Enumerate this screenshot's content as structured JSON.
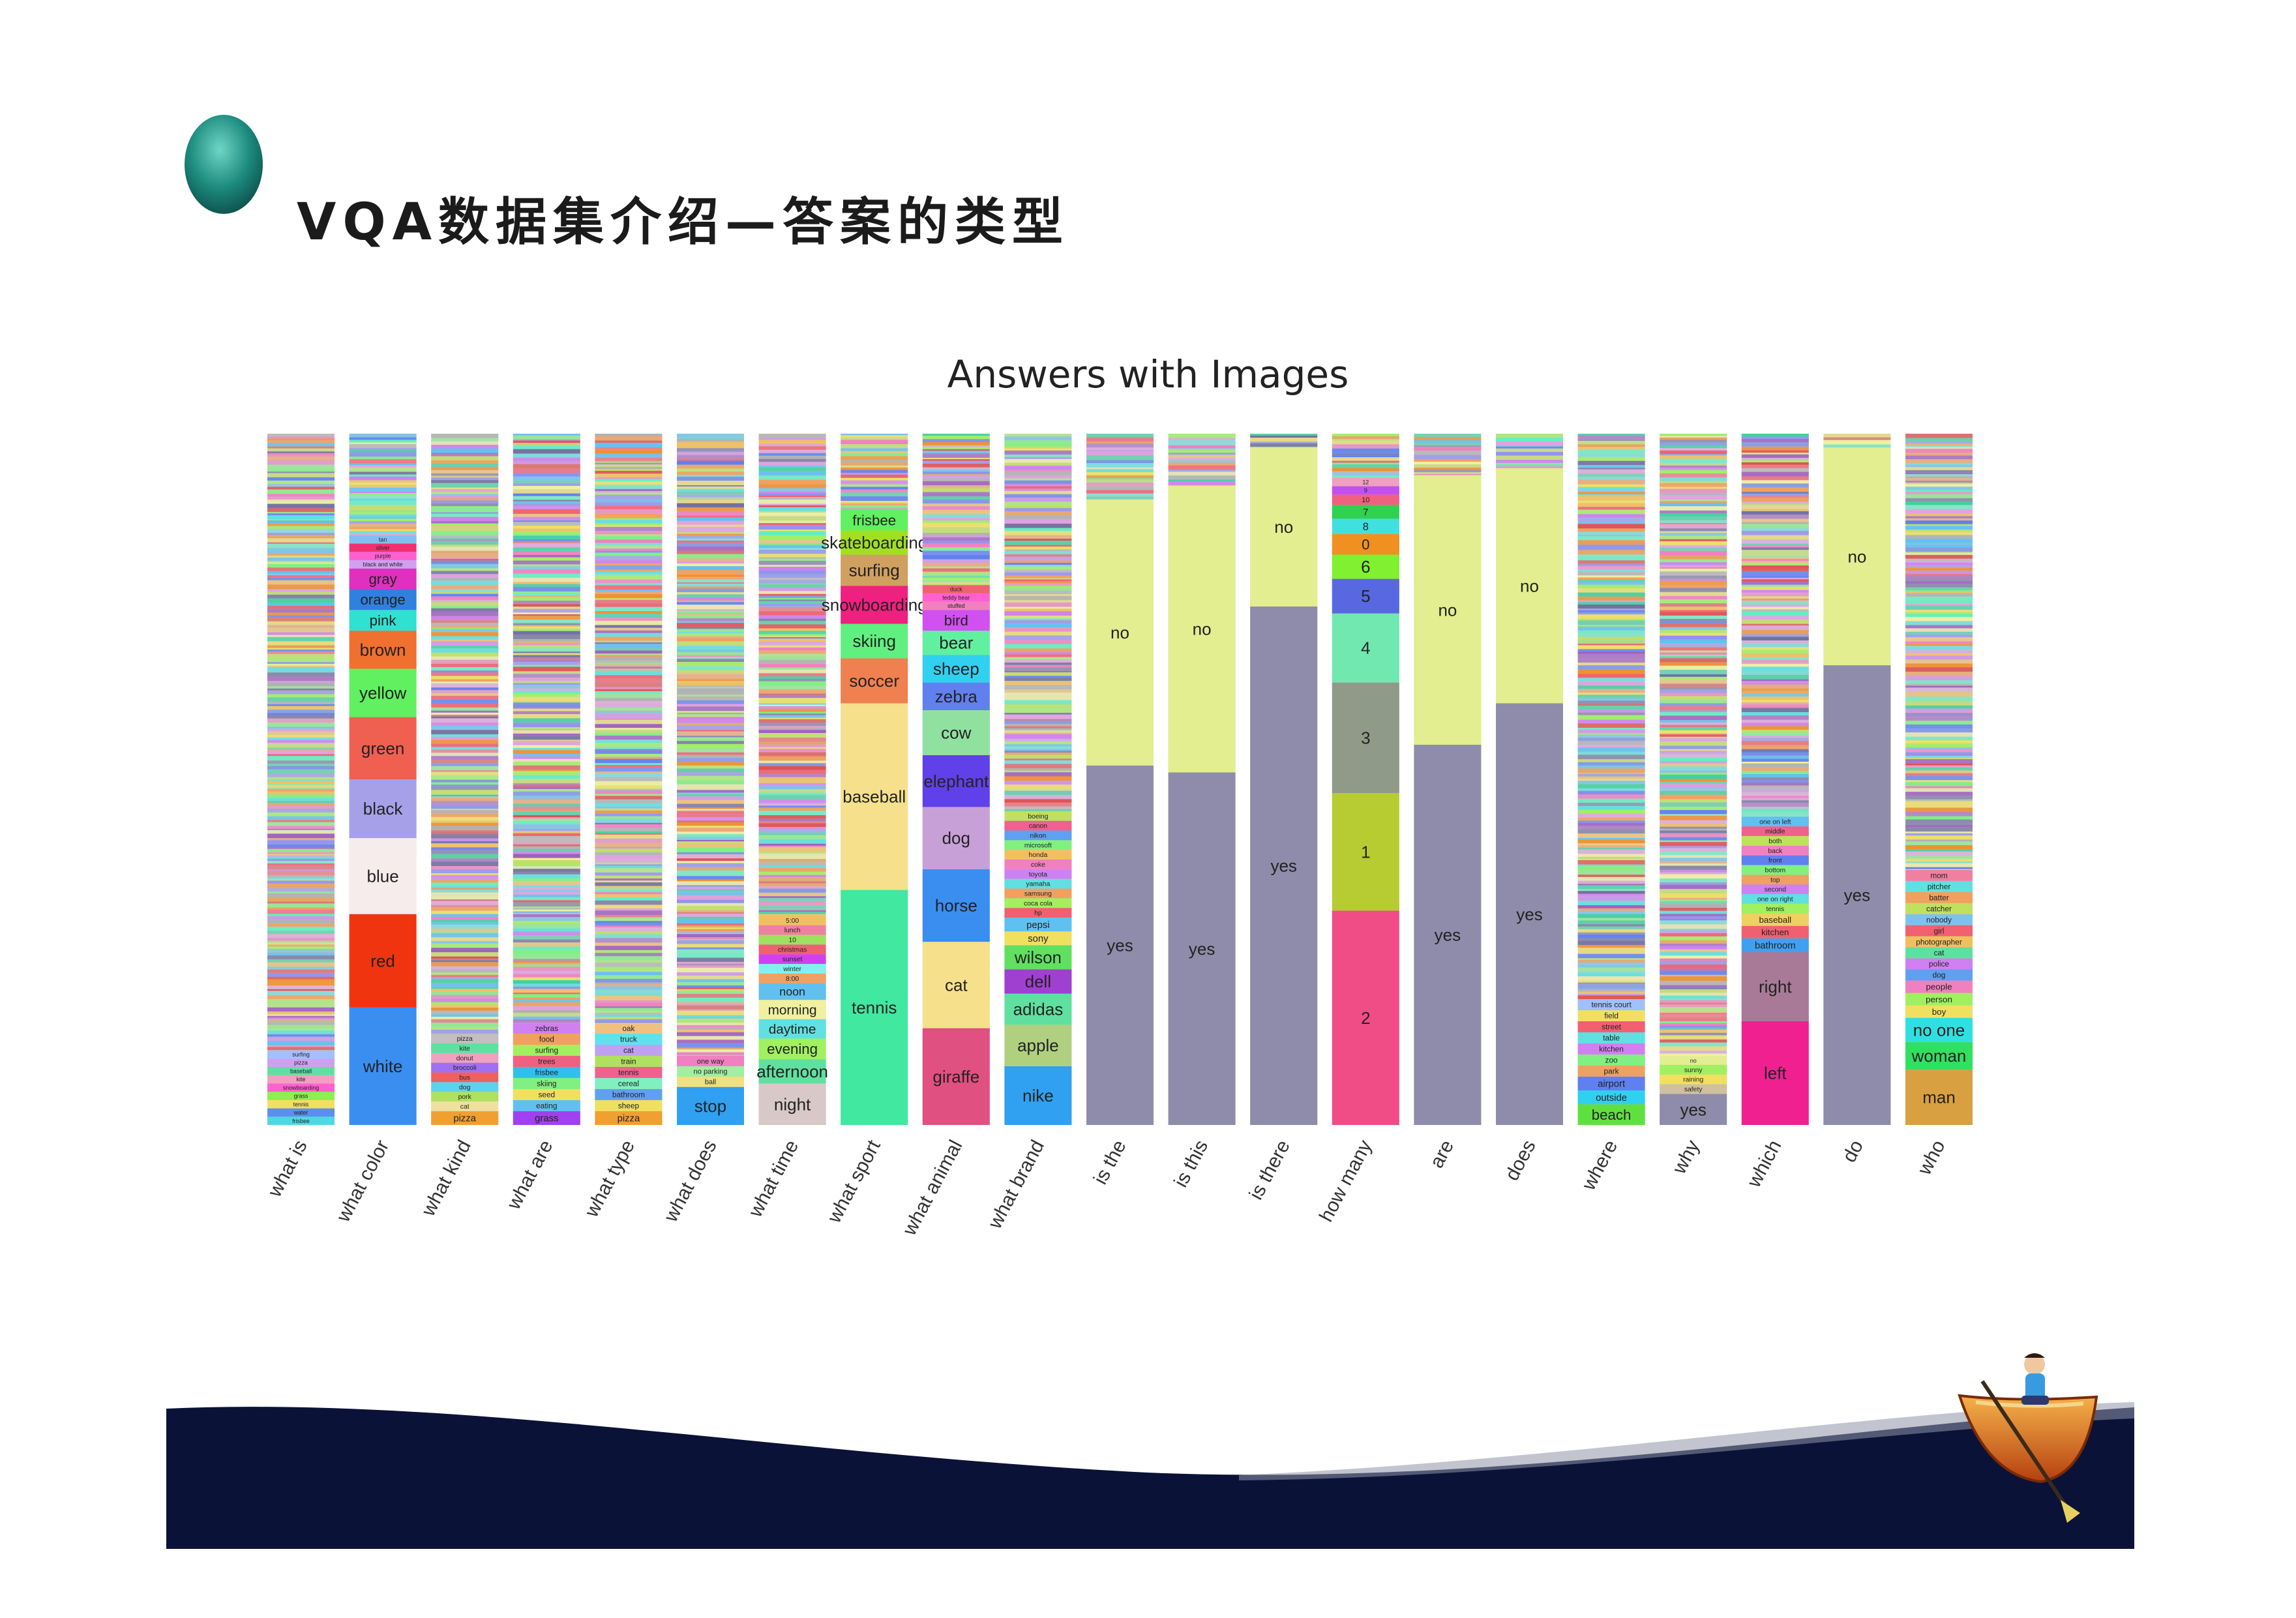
{
  "slide": {
    "title": "VQA数据集介绍—答案的类型"
  },
  "chart_data": {
    "type": "bar",
    "stacked": true,
    "title": "Answers with Images",
    "note": "Each column is a question type; stacked segments show the share of each answer (proportions estimated from the figure, fraction of column height). Unlabeled many-color noise on top represents the long tail of rare answers.",
    "categories": [
      "what is",
      "what color",
      "what kind",
      "what are",
      "what type",
      "what does",
      "what time",
      "what sport",
      "what animal",
      "what brand",
      "is the",
      "is this",
      "is there",
      "how many",
      "are",
      "does",
      "where",
      "why",
      "which",
      "do",
      "who"
    ],
    "columns": [
      {
        "label": "what is",
        "tail": 0.89,
        "segments": [
          [
            "frisbee",
            0.012,
            "#4fd8e0"
          ],
          [
            "water",
            0.012,
            "#5b8ef0"
          ],
          [
            "tennis",
            0.012,
            "#f0e060"
          ],
          [
            "grass",
            0.012,
            "#8cf050"
          ],
          [
            "snowboarding",
            0.012,
            "#ff60d0"
          ],
          [
            "kite",
            0.012,
            "#f0a0c0"
          ],
          [
            "baseball",
            0.012,
            "#60e0a0"
          ],
          [
            "pizza",
            0.012,
            "#d0a0f0"
          ],
          [
            "surfing",
            0.012,
            "#a0c0ff"
          ]
        ]
      },
      {
        "label": "what color",
        "tail": 0.1,
        "segments": [
          [
            "white",
            0.17,
            "#3a8ef0"
          ],
          [
            "red",
            0.135,
            "#f03410"
          ],
          [
            "blue",
            0.11,
            "#f6ecec"
          ],
          [
            "black",
            0.085,
            "#a6a0e8"
          ],
          [
            "green",
            0.09,
            "#f06050"
          ],
          [
            "yellow",
            0.07,
            "#60f060"
          ],
          [
            "brown",
            0.055,
            "#f07030"
          ],
          [
            "pink",
            0.03,
            "#30e0d0"
          ],
          [
            "orange",
            0.03,
            "#3080e0"
          ],
          [
            "gray",
            0.03,
            "#e030c0"
          ],
          [
            "black and white",
            0.012,
            "#d0a0f0"
          ],
          [
            "purple",
            0.012,
            "#ff60d0"
          ],
          [
            "silver",
            0.012,
            "#f03070"
          ],
          [
            "tan",
            0.012,
            "#80c0f0"
          ]
        ]
      },
      {
        "label": "what kind",
        "tail": 0.86,
        "segments": [
          [
            "pizza",
            0.02,
            "#f0a030"
          ],
          [
            "cat",
            0.014,
            "#f0e0a0"
          ],
          [
            "pork",
            0.014,
            "#b0e060"
          ],
          [
            "dog",
            0.014,
            "#60d0f0"
          ],
          [
            "bus",
            0.014,
            "#f06060"
          ],
          [
            "broccoli",
            0.014,
            "#a070f0"
          ],
          [
            "donut",
            0.014,
            "#f0a0c0"
          ],
          [
            "kite",
            0.014,
            "#60e0a0"
          ],
          [
            "pizza ",
            0.014,
            "#c0c0c0"
          ]
        ]
      },
      {
        "label": "what are",
        "tail": 0.855,
        "segments": [
          [
            "grass",
            0.02,
            "#a040f0"
          ],
          [
            "eating",
            0.016,
            "#60c0f0"
          ],
          [
            "seed",
            0.016,
            "#f0e060"
          ],
          [
            "skiing",
            0.016,
            "#80f080"
          ],
          [
            "frisbee",
            0.016,
            "#30c0f0"
          ],
          [
            "trees",
            0.016,
            "#f06080"
          ],
          [
            "surfing",
            0.016,
            "#a0f060"
          ],
          [
            "food",
            0.016,
            "#f0a060"
          ],
          [
            "zebras",
            0.016,
            "#d080f0"
          ]
        ]
      },
      {
        "label": "what type",
        "tail": 0.86,
        "segments": [
          [
            "pizza",
            0.02,
            "#f0a030"
          ],
          [
            "sheep",
            0.016,
            "#f0e060"
          ],
          [
            "bathroom",
            0.016,
            "#60a0f0"
          ],
          [
            "cereal",
            0.016,
            "#80f0c0"
          ],
          [
            "tennis",
            0.016,
            "#f06090"
          ],
          [
            "train",
            0.016,
            "#b0e060"
          ],
          [
            "cat",
            0.016,
            "#c0a0f0"
          ],
          [
            "truck",
            0.016,
            "#60e0f0"
          ],
          [
            "oak",
            0.016,
            "#f0c080"
          ]
        ]
      },
      {
        "label": "what does",
        "tail": 0.9,
        "segments": [
          [
            "stop",
            0.055,
            "#30a0f0"
          ],
          [
            "ball",
            0.015,
            "#f0e080"
          ],
          [
            "no parking",
            0.015,
            "#a0f0a0"
          ],
          [
            "one way",
            0.015,
            "#f080c0"
          ]
        ]
      },
      {
        "label": "what time",
        "tail": 0.68,
        "segments": [
          [
            "night",
            0.06,
            "#d8c8c8"
          ],
          [
            "afternoon",
            0.035,
            "#60e0a0"
          ],
          [
            "evening",
            0.03,
            "#a0f060"
          ],
          [
            "daytime",
            0.028,
            "#60e0e0"
          ],
          [
            "morning",
            0.028,
            "#f0f0a0"
          ],
          [
            "noon",
            0.024,
            "#60c0f0"
          ],
          [
            "8:00",
            0.014,
            "#f0a060"
          ],
          [
            "winter",
            0.014,
            "#80f0f0"
          ],
          [
            "sunset",
            0.014,
            "#d040f0"
          ],
          [
            "christmas",
            0.014,
            "#f06070"
          ],
          [
            "10",
            0.014,
            "#a0e060"
          ],
          [
            "lunch",
            0.014,
            "#f080a0"
          ],
          [
            "5:00",
            0.014,
            "#f0c060"
          ]
        ]
      },
      {
        "label": "what sport",
        "tail": 0.08,
        "segments": [
          [
            "tennis",
            0.34,
            "#40e8a0"
          ],
          [
            "baseball",
            0.27,
            "#f6e08c"
          ],
          [
            "soccer",
            0.065,
            "#f08050"
          ],
          [
            "skiing",
            0.05,
            "#60f080"
          ],
          [
            "snowboarding",
            0.055,
            "#f02080"
          ],
          [
            "surfing",
            0.045,
            "#d0a060"
          ],
          [
            "skateboarding",
            0.035,
            "#a0e020"
          ],
          [
            "frisbee",
            0.03,
            "#60f060"
          ]
        ]
      },
      {
        "label": "what animal",
        "tail": 0.21,
        "segments": [
          [
            "giraffe",
            0.14,
            "#e05080"
          ],
          [
            "cat",
            0.125,
            "#f6e08c"
          ],
          [
            "horse",
            0.105,
            "#3a8ef0"
          ],
          [
            "dog",
            0.09,
            "#c8a0d8"
          ],
          [
            "elephant",
            0.075,
            "#6040e8"
          ],
          [
            "cow",
            0.065,
            "#90e0a0"
          ],
          [
            "zebra",
            0.04,
            "#6080f0"
          ],
          [
            "sheep",
            0.04,
            "#30d0f0"
          ],
          [
            "bear",
            0.035,
            "#60f0a0"
          ],
          [
            "bird",
            0.03,
            "#d050f0"
          ],
          [
            "stuffed",
            0.012,
            "#f080c0"
          ],
          [
            "teddy bear",
            0.012,
            "#ff60d0"
          ],
          [
            "duck",
            0.012,
            "#f06070"
          ]
        ]
      },
      {
        "label": "what brand",
        "tail": 0.47,
        "segments": [
          [
            "nike",
            0.085,
            "#30a0f0"
          ],
          [
            "apple",
            0.06,
            "#b0d080"
          ],
          [
            "adidas",
            0.045,
            "#60e0a0"
          ],
          [
            "dell",
            0.035,
            "#a040d0"
          ],
          [
            "wilson",
            0.035,
            "#60e060"
          ],
          [
            "sony",
            0.02,
            "#f0e060"
          ],
          [
            "pepsi",
            0.02,
            "#60c0f0"
          ],
          [
            "hp",
            0.014,
            "#f06070"
          ],
          [
            "coca cola",
            0.014,
            "#a0f060"
          ],
          [
            "samsung",
            0.014,
            "#f0a060"
          ],
          [
            "yamaha",
            0.014,
            "#60e0e0"
          ],
          [
            "toyota",
            0.014,
            "#d080f0"
          ],
          [
            "coke",
            0.014,
            "#f080c0"
          ],
          [
            "honda",
            0.014,
            "#f0c060"
          ],
          [
            "microsoft",
            0.014,
            "#80f080"
          ],
          [
            "nikon",
            0.014,
            "#60a0f0"
          ],
          [
            "canon",
            0.014,
            "#f06090"
          ],
          [
            "boeing",
            0.014,
            "#c0e060"
          ]
        ]
      },
      {
        "label": "is the",
        "tail": 0.1,
        "segments": [
          [
            "yes",
            0.52,
            "#8e8caa"
          ],
          [
            "no",
            0.385,
            "#e2ee90"
          ]
        ]
      },
      {
        "label": "is this",
        "tail": 0.08,
        "segments": [
          [
            "yes",
            0.51,
            "#8e8caa"
          ],
          [
            "no",
            0.415,
            "#e2ee90"
          ]
        ]
      },
      {
        "label": "is there",
        "tail": 0.02,
        "segments": [
          [
            "yes",
            0.75,
            "#8e8caa"
          ],
          [
            "no",
            0.23,
            "#e2ee90"
          ]
        ]
      },
      {
        "label": "how many",
        "tail": 0.03,
        "segments": [
          [
            "2",
            0.31,
            "#f04d86"
          ],
          [
            "1",
            0.17,
            "#b6cc30"
          ],
          [
            "3",
            0.16,
            "#909a88"
          ],
          [
            "4",
            0.1,
            "#70e8b0"
          ],
          [
            "5",
            0.05,
            "#5868e0"
          ],
          [
            "6",
            0.035,
            "#80f030"
          ],
          [
            "0",
            0.03,
            "#f09020"
          ],
          [
            "8",
            0.022,
            "#40e0e0"
          ],
          [
            "7",
            0.02,
            "#30d050"
          ],
          [
            "10",
            0.015,
            "#f06080"
          ],
          [
            "9",
            0.012,
            "#c050f0"
          ],
          [
            "12",
            0.012,
            "#f0a0c0"
          ]
        ]
      },
      {
        "label": "are",
        "tail": 0.06,
        "segments": [
          [
            "yes",
            0.55,
            "#8e8caa"
          ],
          [
            "no",
            0.39,
            "#e2ee90"
          ]
        ]
      },
      {
        "label": "does",
        "tail": 0.05,
        "segments": [
          [
            "yes",
            0.61,
            "#8e8caa"
          ],
          [
            "no",
            0.34,
            "#e2ee90"
          ]
        ]
      },
      {
        "label": "where",
        "tail": 0.84,
        "segments": [
          [
            "beach",
            0.03,
            "#60e040"
          ],
          [
            "outside",
            0.02,
            "#30d0f0"
          ],
          [
            "airport",
            0.02,
            "#6080f0"
          ],
          [
            "park",
            0.016,
            "#f0a060"
          ],
          [
            "zoo",
            0.016,
            "#80f080"
          ],
          [
            "kitchen",
            0.016,
            "#d080f0"
          ],
          [
            "table",
            0.016,
            "#60e0e0"
          ],
          [
            "street",
            0.016,
            "#f06070"
          ],
          [
            "field",
            0.016,
            "#f0e060"
          ],
          [
            "tennis court",
            0.016,
            "#a0c0ff"
          ]
        ]
      },
      {
        "label": "why",
        "tail": 0.9,
        "segments": [
          [
            "yes",
            0.045,
            "#8e8caa"
          ],
          [
            "safety",
            0.014,
            "#d0c0a0"
          ],
          [
            "raining",
            0.014,
            "#f0e060"
          ],
          [
            "sunny",
            0.014,
            "#a0f060"
          ],
          [
            "no",
            0.012,
            "#e2ee90"
          ]
        ]
      },
      {
        "label": "which",
        "tail": 0.44,
        "segments": [
          [
            "left",
            0.15,
            "#f02090"
          ],
          [
            "right",
            0.1,
            "#a87a98"
          ],
          [
            "bathroom",
            0.02,
            "#40a0f0"
          ],
          [
            "kitchen",
            0.018,
            "#f06070"
          ],
          [
            "baseball",
            0.018,
            "#f0d060"
          ],
          [
            "tennis",
            0.014,
            "#a0f060"
          ],
          [
            "one on right",
            0.014,
            "#60e0e0"
          ],
          [
            "second",
            0.014,
            "#d080f0"
          ],
          [
            "top",
            0.014,
            "#f0a060"
          ],
          [
            "bottom",
            0.014,
            "#80f080"
          ],
          [
            "front",
            0.014,
            "#6080f0"
          ],
          [
            "back",
            0.014,
            "#f080c0"
          ],
          [
            "both",
            0.014,
            "#c0e060"
          ],
          [
            "middle",
            0.014,
            "#f06090"
          ],
          [
            "one on left",
            0.014,
            "#60c0f0"
          ]
        ]
      },
      {
        "label": "do",
        "tail": 0.02,
        "segments": [
          [
            "yes",
            0.665,
            "#8e8caa"
          ],
          [
            "no",
            0.315,
            "#e2ee90"
          ]
        ]
      },
      {
        "label": "who",
        "tail": 0.55,
        "segments": [
          [
            "man",
            0.08,
            "#d8a040"
          ],
          [
            "woman",
            0.04,
            "#30e060"
          ],
          [
            "no one",
            0.035,
            "#30e0e0"
          ],
          [
            "boy",
            0.018,
            "#f0e060"
          ],
          [
            "person",
            0.018,
            "#a0f060"
          ],
          [
            "people",
            0.018,
            "#f080c0"
          ],
          [
            "dog",
            0.016,
            "#60a0f0"
          ],
          [
            "police",
            0.016,
            "#d080f0"
          ],
          [
            "cat",
            0.016,
            "#60e0a0"
          ],
          [
            "photographer",
            0.016,
            "#f0c060"
          ],
          [
            "girl",
            0.016,
            "#f06070"
          ],
          [
            "nobody",
            0.016,
            "#80c0f0"
          ],
          [
            "catcher",
            0.016,
            "#c0e060"
          ],
          [
            "batter",
            0.016,
            "#f0a060"
          ],
          [
            "pitcher",
            0.016,
            "#60e0e0"
          ],
          [
            "mom",
            0.016,
            "#f080a0"
          ]
        ]
      }
    ]
  }
}
